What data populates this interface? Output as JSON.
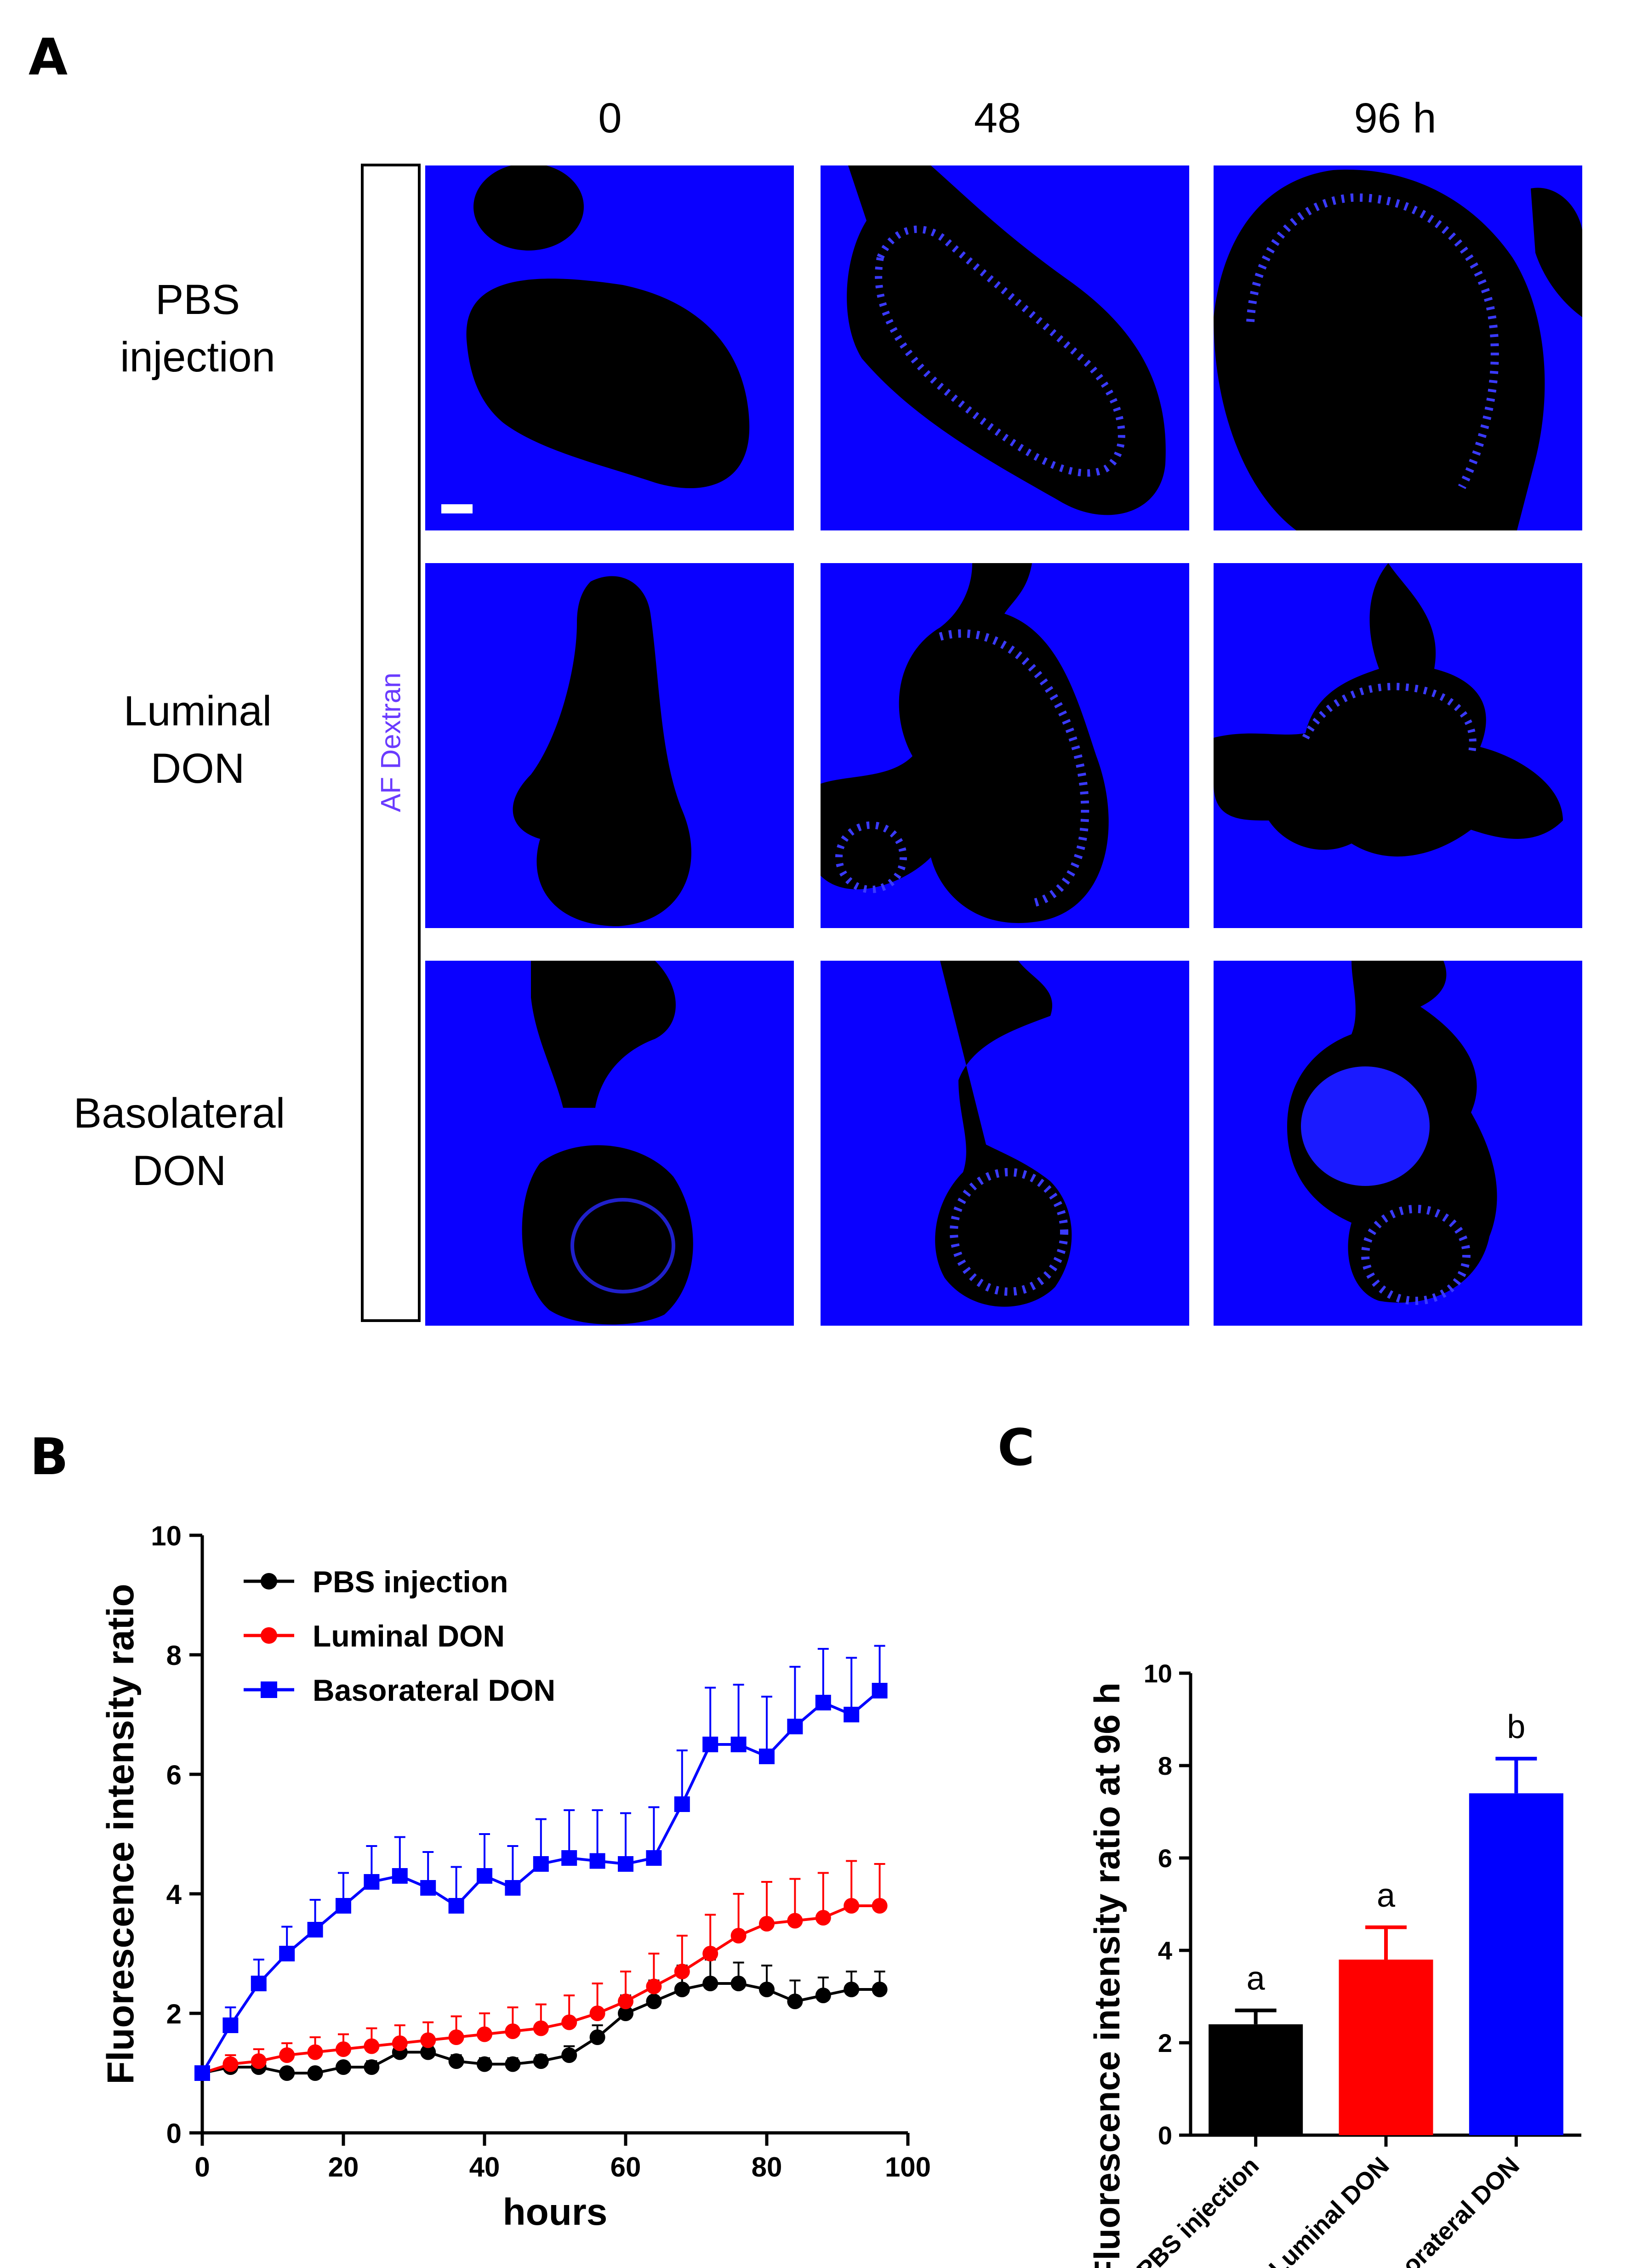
{
  "panel_a": {
    "letter": "A",
    "time_labels": [
      "0",
      "48",
      "96 h"
    ],
    "row_labels": [
      {
        "line1": "PBS",
        "line2": "injection"
      },
      {
        "line1": "Luminal",
        "line2": "DON"
      },
      {
        "line1": "Basolateral",
        "line2": "DON"
      }
    ],
    "stain_label": "AF Dextran",
    "stain_color": "#6a3bff",
    "tile_color": "#0a00ff"
  },
  "panel_b": {
    "letter": "B"
  },
  "panel_c": {
    "letter": "C"
  },
  "chart_data": [
    {
      "type": "line",
      "panel": "B",
      "xlabel": "hours",
      "ylabel": "Fluorescence intensity ratio",
      "xlim": [
        0,
        100
      ],
      "ylim": [
        0,
        10
      ],
      "xticks": [
        0,
        20,
        40,
        60,
        80,
        100
      ],
      "yticks": [
        0,
        2,
        4,
        6,
        8,
        10
      ],
      "legend_position": "top-left",
      "series": [
        {
          "name": "PBS injection",
          "color": "#000000",
          "marker": "circle",
          "x": [
            0,
            4,
            8,
            12,
            16,
            20,
            24,
            28,
            32,
            36,
            40,
            44,
            48,
            52,
            56,
            60,
            64,
            68,
            72,
            76,
            80,
            84,
            88,
            92,
            96
          ],
          "y": [
            1.0,
            1.1,
            1.1,
            1.0,
            1.0,
            1.1,
            1.1,
            1.35,
            1.35,
            1.2,
            1.15,
            1.15,
            1.2,
            1.3,
            1.6,
            2.0,
            2.2,
            2.4,
            2.5,
            2.5,
            2.4,
            2.2,
            2.3,
            2.4,
            2.4
          ],
          "err": [
            0.05,
            0.05,
            0.05,
            0.05,
            0.05,
            0.05,
            0.1,
            0.1,
            0.1,
            0.1,
            0.1,
            0.1,
            0.1,
            0.15,
            0.2,
            0.3,
            0.35,
            0.4,
            0.4,
            0.35,
            0.4,
            0.35,
            0.3,
            0.3,
            0.3
          ]
        },
        {
          "name": "Luminal DON",
          "color": "#ff0000",
          "marker": "circle",
          "x": [
            0,
            4,
            8,
            12,
            16,
            20,
            24,
            28,
            32,
            36,
            40,
            44,
            48,
            52,
            56,
            60,
            64,
            68,
            72,
            76,
            80,
            84,
            88,
            92,
            96
          ],
          "y": [
            1.0,
            1.15,
            1.2,
            1.3,
            1.35,
            1.4,
            1.45,
            1.5,
            1.55,
            1.6,
            1.65,
            1.7,
            1.75,
            1.85,
            2.0,
            2.2,
            2.45,
            2.7,
            3.0,
            3.3,
            3.5,
            3.55,
            3.6,
            3.8,
            3.8
          ],
          "err": [
            0.05,
            0.15,
            0.2,
            0.2,
            0.25,
            0.25,
            0.3,
            0.3,
            0.3,
            0.35,
            0.35,
            0.4,
            0.4,
            0.45,
            0.5,
            0.5,
            0.55,
            0.6,
            0.65,
            0.7,
            0.7,
            0.7,
            0.75,
            0.75,
            0.7
          ]
        },
        {
          "name": "Basorateral DON",
          "color": "#0000ff",
          "marker": "square",
          "x": [
            0,
            4,
            8,
            12,
            16,
            20,
            24,
            28,
            32,
            36,
            40,
            44,
            48,
            52,
            56,
            60,
            64,
            68,
            72,
            76,
            80,
            84,
            88,
            92,
            96
          ],
          "y": [
            1.0,
            1.8,
            2.5,
            3.0,
            3.4,
            3.8,
            4.2,
            4.3,
            4.1,
            3.8,
            4.3,
            4.1,
            4.5,
            4.6,
            4.55,
            4.5,
            4.6,
            5.5,
            6.5,
            6.5,
            6.3,
            6.8,
            7.2,
            7.0,
            7.4
          ],
          "err": [
            0.05,
            0.3,
            0.4,
            0.45,
            0.5,
            0.55,
            0.6,
            0.65,
            0.6,
            0.65,
            0.7,
            0.7,
            0.75,
            0.8,
            0.85,
            0.85,
            0.85,
            0.9,
            0.95,
            1.0,
            1.0,
            1.0,
            0.9,
            0.95,
            0.75
          ]
        }
      ]
    },
    {
      "type": "bar",
      "panel": "C",
      "ylabel": "Fluorescence intensity ratio at 96 h",
      "ylim": [
        0,
        10
      ],
      "yticks": [
        0,
        2,
        4,
        6,
        8,
        10
      ],
      "categories": [
        "PBS injection",
        "Luminal DON",
        "Basorateral DON"
      ],
      "values": [
        2.4,
        3.8,
        7.4
      ],
      "errors": [
        0.3,
        0.7,
        0.75
      ],
      "colors": [
        "#000000",
        "#ff0000",
        "#0000ff"
      ],
      "annotations": [
        "a",
        "a",
        "b"
      ]
    }
  ]
}
